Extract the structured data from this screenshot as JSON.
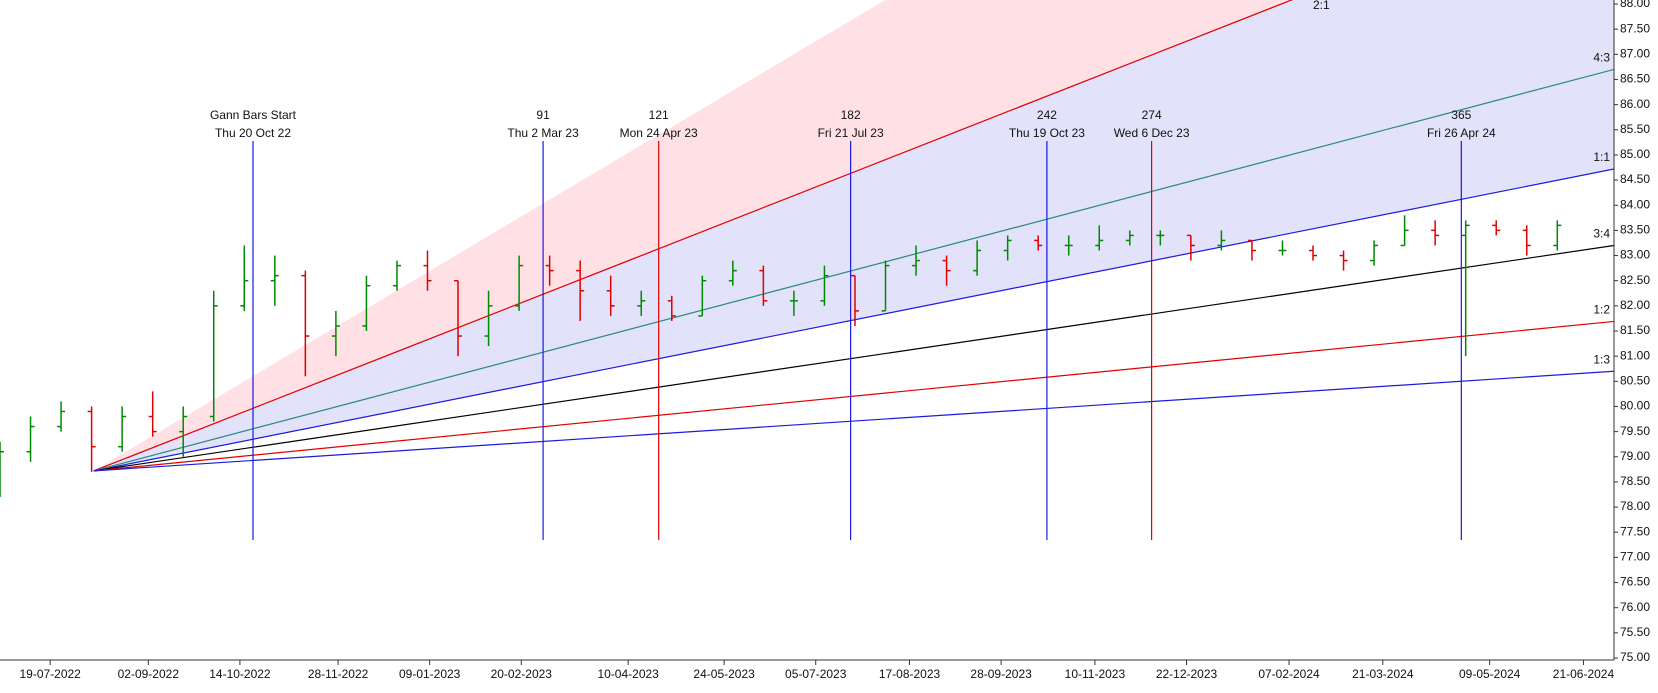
{
  "chart_data": {
    "type": "ohlc",
    "x": [
      "2022-06-26",
      "2022-07-10",
      "2022-07-24",
      "2022-08-07",
      "2022-08-21",
      "2022-09-04",
      "2022-09-18",
      "2022-10-02",
      "2022-10-16",
      "2022-10-30",
      "2022-11-13",
      "2022-11-27",
      "2022-12-11",
      "2022-12-25",
      "2023-01-08",
      "2023-01-22",
      "2023-02-05",
      "2023-02-19",
      "2023-03-05",
      "2023-03-19",
      "2023-04-02",
      "2023-04-16",
      "2023-04-30",
      "2023-05-14",
      "2023-05-28",
      "2023-06-11",
      "2023-06-25",
      "2023-07-09",
      "2023-07-23",
      "2023-08-06",
      "2023-08-20",
      "2023-09-03",
      "2023-09-17",
      "2023-10-01",
      "2023-10-15",
      "2023-10-29",
      "2023-11-12",
      "2023-11-26",
      "2023-12-10",
      "2023-12-24",
      "2024-01-07",
      "2024-01-21",
      "2024-02-04",
      "2024-02-18",
      "2024-03-03",
      "2024-03-17",
      "2024-03-31",
      "2024-04-14",
      "2024-04-28",
      "2024-05-12",
      "2024-05-26",
      "2024-06-09"
    ],
    "open": [
      78.3,
      79.1,
      79.6,
      79.9,
      79.2,
      79.8,
      79.5,
      79.8,
      82.0,
      82.5,
      82.6,
      81.4,
      81.6,
      82.4,
      82.8,
      82.5,
      81.4,
      82.0,
      82.8,
      82.7,
      82.3,
      82.0,
      82.1,
      81.8,
      82.5,
      82.7,
      82.1,
      82.1,
      82.6,
      81.9,
      82.8,
      82.9,
      82.7,
      83.1,
      83.3,
      83.2,
      83.2,
      83.3,
      83.4,
      83.4,
      83.2,
      83.3,
      83.1,
      83.1,
      83.0,
      82.9,
      83.2,
      83.5,
      83.4,
      83.6,
      83.5,
      83.2
    ],
    "high": [
      79.3,
      79.8,
      80.1,
      80.0,
      80.0,
      80.3,
      80.0,
      82.3,
      83.2,
      83.0,
      82.7,
      81.9,
      82.6,
      82.9,
      83.1,
      82.5,
      82.3,
      83.0,
      83.0,
      82.9,
      82.6,
      82.3,
      82.2,
      82.6,
      82.9,
      82.8,
      82.3,
      82.8,
      82.6,
      82.9,
      83.2,
      83.0,
      83.3,
      83.4,
      83.4,
      83.4,
      83.6,
      83.5,
      83.5,
      83.4,
      83.5,
      83.3,
      83.3,
      83.2,
      83.1,
      83.3,
      83.8,
      83.7,
      83.7,
      83.7,
      83.6,
      83.7
    ],
    "low": [
      78.2,
      78.9,
      79.5,
      78.7,
      79.1,
      79.4,
      79.0,
      79.7,
      81.9,
      82.0,
      80.6,
      81.0,
      81.5,
      82.3,
      82.3,
      81.0,
      81.2,
      81.9,
      82.4,
      81.7,
      81.8,
      81.8,
      81.7,
      81.8,
      82.4,
      82.0,
      81.8,
      82.0,
      81.6,
      81.9,
      82.6,
      82.4,
      82.6,
      82.9,
      83.1,
      83.0,
      83.1,
      83.2,
      83.2,
      82.9,
      83.1,
      82.9,
      83.0,
      82.9,
      82.7,
      82.8,
      83.2,
      83.2,
      81.0,
      83.4,
      83.0,
      83.1
    ],
    "close": [
      79.1,
      79.6,
      79.9,
      79.2,
      79.8,
      79.5,
      79.8,
      82.0,
      82.5,
      82.6,
      81.4,
      81.6,
      82.4,
      82.8,
      82.5,
      81.4,
      82.0,
      82.8,
      82.7,
      82.3,
      82.0,
      82.1,
      81.8,
      82.5,
      82.7,
      82.1,
      82.1,
      82.6,
      81.9,
      82.8,
      82.9,
      82.7,
      83.1,
      83.3,
      83.2,
      83.2,
      83.3,
      83.4,
      83.4,
      83.2,
      83.3,
      83.1,
      83.1,
      83.0,
      82.9,
      83.2,
      83.5,
      83.4,
      83.6,
      83.5,
      83.2,
      83.6
    ],
    "up_color": "#008a00",
    "down_color": "#e00000",
    "xlim": [
      "2022-06-26",
      "2024-07-05"
    ],
    "ylim": [
      75,
      88
    ],
    "xticks": [
      {
        "value": "2022-07-19",
        "label": "19-07-2022"
      },
      {
        "value": "2022-09-02",
        "label": "02-09-2022"
      },
      {
        "value": "2022-10-14",
        "label": "14-10-2022"
      },
      {
        "value": "2022-11-28",
        "label": "28-11-2022"
      },
      {
        "value": "2023-01-09",
        "label": "09-01-2023"
      },
      {
        "value": "2023-02-20",
        "label": "20-02-2023"
      },
      {
        "value": "2023-04-10",
        "label": "10-04-2023"
      },
      {
        "value": "2023-05-24",
        "label": "24-05-2023"
      },
      {
        "value": "2023-07-05",
        "label": "05-07-2023"
      },
      {
        "value": "2023-08-17",
        "label": "17-08-2023"
      },
      {
        "value": "2023-09-28",
        "label": "28-09-2023"
      },
      {
        "value": "2023-11-10",
        "label": "10-11-2023"
      },
      {
        "value": "2023-12-22",
        "label": "22-12-2023"
      },
      {
        "value": "2024-02-07",
        "label": "07-02-2024"
      },
      {
        "value": "2024-03-21",
        "label": "21-03-2024"
      },
      {
        "value": "2024-05-09",
        "label": "09-05-2024"
      },
      {
        "value": "2024-06-21",
        "label": "21-06-2024"
      }
    ],
    "yticks": [
      {
        "value": 75,
        "label": "75.00"
      },
      {
        "value": 75.5,
        "label": "75.50"
      },
      {
        "value": 76,
        "label": "76.00"
      },
      {
        "value": 76.5,
        "label": "76.50"
      },
      {
        "value": 77,
        "label": "77.00"
      },
      {
        "value": 77.5,
        "label": "77.50"
      },
      {
        "value": 78,
        "label": "78.00"
      },
      {
        "value": 78.5,
        "label": "78.50"
      },
      {
        "value": 79,
        "label": "79.00"
      },
      {
        "value": 79.5,
        "label": "79.50"
      },
      {
        "value": 80,
        "label": "80.00"
      },
      {
        "value": 80.5,
        "label": "80.50"
      },
      {
        "value": 81,
        "label": "81.00"
      },
      {
        "value": 81.5,
        "label": "81.50"
      },
      {
        "value": 82,
        "label": "82.00"
      },
      {
        "value": 82.5,
        "label": "82.50"
      },
      {
        "value": 83,
        "label": "83.00"
      },
      {
        "value": 83.5,
        "label": "83.50"
      },
      {
        "value": 84,
        "label": "84.00"
      },
      {
        "value": 84.5,
        "label": "84.50"
      },
      {
        "value": 85,
        "label": "85.00"
      },
      {
        "value": 85.5,
        "label": "85.50"
      },
      {
        "value": 86,
        "label": "86.00"
      },
      {
        "value": 86.5,
        "label": "86.50"
      },
      {
        "value": 87,
        "label": "87.00"
      },
      {
        "value": 87.5,
        "label": "87.50"
      },
      {
        "value": 88,
        "label": "88.00"
      }
    ],
    "fan": [
      {
        "fill": "#ffe0e4",
        "x": [
          "2022-08-08",
          "2024-07-05"
        ],
        "values": [
          78.72,
          96.7
        ]
      },
      {
        "name": "2:1",
        "color": "#e00000",
        "fill": "#e2e2fa",
        "x": [
          "2022-08-08",
          "2024-07-05"
        ],
        "values": [
          78.72,
          90.6
        ]
      },
      {
        "name": "1:1",
        "color": "#1a1ae0",
        "x": [
          "2022-08-08",
          "2024-07-05"
        ],
        "values": [
          78.72,
          84.72
        ]
      },
      {
        "name": "4:3",
        "color": "#2a8a7a",
        "x": [
          "2022-08-08",
          "2024-07-05"
        ],
        "values": [
          78.72,
          86.7
        ]
      },
      {
        "name": "3:4",
        "color": "#000000",
        "x": [
          "2022-08-08",
          "2024-07-05"
        ],
        "values": [
          78.72,
          83.2
        ]
      },
      {
        "name": "1:2",
        "color": "#e00000",
        "x": [
          "2022-08-08",
          "2024-07-05"
        ],
        "values": [
          78.72,
          81.69
        ]
      },
      {
        "name": "1:3",
        "color": "#1a1ae0",
        "x": [
          "2022-08-08",
          "2024-07-05"
        ],
        "values": [
          78.72,
          80.7
        ]
      }
    ],
    "time_lines": [
      {
        "x": "2022-10-20",
        "top": "Gann Bars Start",
        "bottom": "Thu 20 Oct 22",
        "color": "#1a1ae0"
      },
      {
        "x": "2023-03-02",
        "top": "91",
        "bottom": "Thu 2 Mar 23",
        "color": "#1a1ae0"
      },
      {
        "x": "2023-04-24",
        "top": "121",
        "bottom": "Mon 24 Apr 23",
        "color": "#e00000"
      },
      {
        "x": "2023-07-21",
        "top": "182",
        "bottom": "Fri 21 Jul 23",
        "color": "#1a1ae0"
      },
      {
        "x": "2023-10-19",
        "top": "242",
        "bottom": "Thu 19 Oct 23",
        "color": "#1a1ae0"
      },
      {
        "x": "2023-12-06",
        "top": "274",
        "bottom": "Wed 6 Dec 23",
        "color": "#e00000"
      },
      {
        "x": "2024-04-26",
        "top": "365",
        "bottom": "Fri 26 Apr 24",
        "color": "#1a1ae0"
      }
    ]
  }
}
